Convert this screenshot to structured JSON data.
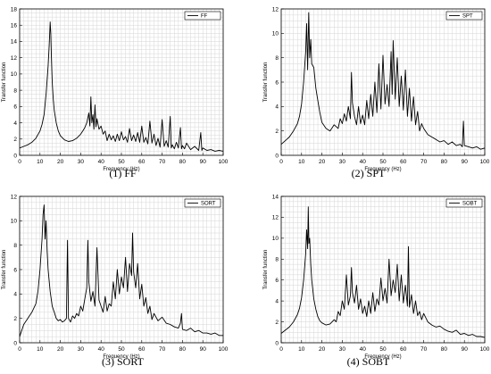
{
  "chart_data": [
    {
      "type": "line",
      "caption": "(1) FF",
      "xlabel": "Frequency (Hz)",
      "ylabel": "Transfer function",
      "xlim": [
        0,
        100
      ],
      "ylim": [
        0,
        18
      ],
      "xticks": [
        0,
        10,
        20,
        30,
        40,
        50,
        60,
        70,
        80,
        90,
        100
      ],
      "yticks": [
        0,
        2,
        4,
        6,
        8,
        10,
        12,
        14,
        16,
        18
      ],
      "grid": true,
      "legend": "top-right",
      "series": [
        {
          "name": "FF",
          "x": [
            0,
            2,
            4,
            6,
            8,
            10,
            11,
            12,
            13,
            14,
            14.5,
            15,
            15.3,
            15.6,
            16,
            16.5,
            17,
            18,
            19,
            20,
            22,
            24,
            26,
            28,
            30,
            31,
            32,
            33,
            34,
            34.5,
            35,
            35.5,
            36,
            36.5,
            37,
            37.5,
            38,
            39,
            40,
            41,
            42,
            43,
            44,
            45,
            46,
            47,
            48,
            49,
            50,
            51,
            52,
            53,
            54,
            55,
            56,
            57,
            58,
            59,
            60,
            61,
            62,
            63,
            64,
            65,
            66,
            67,
            68,
            69,
            70,
            71,
            72,
            73,
            74,
            74.5,
            75,
            76,
            77,
            78,
            79,
            79.5,
            80,
            81,
            82,
            84,
            86,
            88,
            89,
            89.5,
            90,
            92,
            94,
            96,
            98,
            100
          ],
          "y": [
            0.9,
            1.1,
            1.3,
            1.6,
            2.1,
            3.0,
            3.8,
            5.0,
            7.5,
            11.0,
            13.5,
            16.4,
            15.0,
            12.0,
            9.0,
            7.0,
            5.5,
            4.0,
            3.0,
            2.4,
            1.9,
            1.7,
            1.8,
            2.1,
            2.6,
            3.0,
            3.4,
            4.0,
            5.2,
            3.6,
            7.2,
            4.0,
            5.0,
            3.2,
            6.2,
            3.5,
            4.5,
            3.2,
            3.6,
            2.6,
            3.0,
            1.8,
            2.6,
            1.9,
            2.4,
            1.7,
            2.6,
            1.8,
            2.9,
            1.9,
            2.3,
            1.6,
            3.3,
            1.8,
            2.5,
            1.7,
            2.8,
            1.6,
            3.6,
            1.6,
            2.2,
            1.4,
            4.2,
            1.5,
            2.6,
            1.2,
            2.1,
            1.0,
            4.4,
            1.1,
            1.8,
            1.0,
            4.8,
            0.9,
            1.3,
            0.8,
            1.6,
            0.9,
            3.4,
            0.8,
            1.2,
            0.8,
            1.5,
            0.7,
            1.1,
            0.6,
            2.8,
            0.6,
            0.9,
            0.6,
            0.7,
            0.5,
            0.6,
            0.5
          ]
        }
      ]
    },
    {
      "type": "line",
      "caption": "(2) SPT",
      "xlabel": "Frequency (Hz)",
      "ylabel": "Transfer function",
      "xlim": [
        0,
        100
      ],
      "ylim": [
        0,
        12
      ],
      "xticks": [
        0,
        10,
        20,
        30,
        40,
        50,
        60,
        70,
        80,
        90,
        100
      ],
      "yticks": [
        0,
        2,
        4,
        6,
        8,
        10,
        12
      ],
      "grid": true,
      "legend": "top-right",
      "series": [
        {
          "name": "SPT",
          "x": [
            0,
            2,
            4,
            6,
            8,
            9,
            10,
            11,
            12,
            12.5,
            13,
            13.5,
            14,
            14.5,
            15,
            16,
            17,
            18,
            19,
            20,
            22,
            24,
            26,
            28,
            29,
            30,
            31,
            32,
            33,
            34,
            34.5,
            35,
            36,
            37,
            38,
            39,
            40,
            41,
            42,
            43,
            44,
            45,
            46,
            47,
            48,
            49,
            50,
            51,
            52,
            53,
            54,
            54.5,
            55,
            56,
            57,
            58,
            59,
            60,
            61,
            62,
            63,
            64,
            65,
            66,
            67,
            68,
            69,
            70,
            72,
            74,
            76,
            78,
            80,
            82,
            84,
            86,
            88,
            89,
            89.5,
            90,
            92,
            94,
            96,
            98,
            100
          ],
          "y": [
            0.9,
            1.2,
            1.5,
            2.0,
            2.6,
            3.2,
            4.2,
            6.0,
            8.5,
            10.8,
            7.0,
            11.7,
            8.0,
            9.5,
            7.5,
            7.2,
            5.5,
            4.5,
            3.5,
            2.7,
            2.2,
            2.0,
            2.5,
            2.2,
            3.0,
            2.6,
            3.4,
            2.8,
            4.0,
            3.0,
            6.8,
            4.3,
            3.2,
            2.5,
            4.0,
            2.6,
            3.3,
            2.5,
            4.5,
            3.0,
            5.0,
            3.2,
            6.0,
            3.5,
            7.5,
            3.8,
            8.2,
            4.2,
            5.8,
            4.0,
            8.5,
            5.0,
            9.4,
            4.6,
            8.0,
            4.0,
            6.5,
            3.7,
            7.0,
            3.2,
            5.5,
            2.8,
            4.8,
            2.5,
            3.6,
            2.0,
            2.6,
            2.2,
            1.7,
            1.5,
            1.3,
            1.1,
            1.2,
            0.9,
            1.1,
            0.8,
            0.9,
            0.7,
            2.8,
            0.8,
            0.7,
            0.6,
            0.7,
            0.5,
            0.6
          ]
        }
      ]
    },
    {
      "type": "line",
      "caption": "(3) SORT",
      "xlabel": "Frequency (Hz)",
      "ylabel": "Transfer function",
      "xlim": [
        0,
        100
      ],
      "ylim": [
        0,
        12
      ],
      "xticks": [
        0,
        10,
        20,
        30,
        40,
        50,
        60,
        70,
        80,
        90,
        100
      ],
      "yticks": [
        0,
        2,
        4,
        6,
        8,
        10,
        12
      ],
      "grid": true,
      "legend": "top-right",
      "series": [
        {
          "name": "SORT",
          "x": [
            0,
            1,
            2,
            4,
            6,
            8,
            9,
            10,
            11,
            11.5,
            12,
            12.5,
            13,
            13.5,
            14,
            15,
            16,
            17,
            18,
            19,
            20,
            21,
            22,
            23,
            23.5,
            24,
            25,
            26,
            27,
            28,
            29,
            30,
            31,
            32,
            33,
            33.5,
            34,
            35,
            36,
            37,
            38,
            39,
            40,
            41,
            42,
            43,
            44,
            45,
            46,
            47,
            48,
            49,
            50,
            51,
            52,
            53,
            54,
            55,
            55.5,
            56,
            57,
            58,
            59,
            60,
            61,
            62,
            63,
            64,
            65,
            66,
            68,
            70,
            72,
            74,
            76,
            78,
            79,
            79.5,
            80,
            82,
            84,
            86,
            88,
            90,
            92,
            94,
            96,
            98,
            100
          ],
          "y": [
            0.5,
            1.0,
            1.5,
            2.0,
            2.5,
            3.2,
            4.2,
            6.0,
            8.5,
            10.5,
            11.3,
            8.5,
            10.0,
            7.5,
            6.0,
            4.2,
            3.0,
            2.5,
            2.0,
            1.8,
            1.9,
            1.7,
            1.8,
            2.0,
            8.4,
            2.0,
            1.7,
            2.2,
            2.0,
            2.4,
            2.2,
            3.0,
            2.6,
            3.6,
            4.5,
            8.4,
            5.0,
            3.4,
            4.2,
            3.0,
            7.8,
            3.5,
            3.0,
            2.5,
            3.8,
            2.6,
            3.2,
            3.0,
            5.0,
            3.6,
            6.0,
            4.0,
            5.4,
            4.5,
            7.0,
            4.2,
            6.5,
            5.5,
            9.0,
            5.8,
            4.5,
            6.5,
            3.6,
            4.8,
            3.0,
            3.7,
            2.4,
            3.0,
            1.9,
            2.4,
            1.8,
            2.1,
            1.6,
            1.5,
            1.3,
            1.2,
            1.6,
            2.4,
            1.1,
            1.0,
            1.2,
            0.9,
            1.0,
            0.8,
            0.8,
            0.7,
            0.8,
            0.6,
            0.6
          ]
        }
      ]
    },
    {
      "type": "line",
      "caption": "(4) SOBT",
      "xlabel": "Frequency (Hz)",
      "ylabel": "Transfer function",
      "xlim": [
        0,
        100
      ],
      "ylim": [
        0,
        14
      ],
      "xticks": [
        0,
        10,
        20,
        30,
        40,
        50,
        60,
        70,
        80,
        90,
        100
      ],
      "yticks": [
        0,
        2,
        4,
        6,
        8,
        10,
        12,
        14
      ],
      "grid": true,
      "legend": "top-right",
      "series": [
        {
          "name": "SOBT",
          "x": [
            0,
            2,
            4,
            6,
            8,
            9,
            10,
            11,
            12,
            12.5,
            13,
            13.3,
            13.6,
            14,
            14.5,
            15,
            16,
            17,
            18,
            19,
            20,
            22,
            24,
            26,
            27,
            28,
            29,
            30,
            31,
            32,
            33,
            34,
            34.5,
            35,
            36,
            37,
            38,
            39,
            40,
            41,
            42,
            43,
            44,
            45,
            46,
            47,
            48,
            49,
            50,
            51,
            52,
            53,
            54,
            55,
            56,
            57,
            58,
            59,
            60,
            61,
            62,
            62.5,
            63,
            64,
            65,
            66,
            67,
            68,
            69,
            70,
            72,
            74,
            76,
            78,
            80,
            82,
            84,
            86,
            88,
            90,
            92,
            94,
            96,
            98,
            100
          ],
          "y": [
            0.9,
            1.2,
            1.5,
            2.0,
            2.7,
            3.3,
            4.3,
            6.0,
            8.5,
            10.8,
            9.0,
            13.0,
            9.5,
            10.0,
            7.5,
            6.0,
            4.2,
            3.2,
            2.5,
            2.1,
            1.9,
            1.7,
            1.8,
            2.2,
            2.0,
            3.0,
            2.6,
            4.0,
            3.2,
            6.5,
            3.6,
            4.5,
            7.2,
            4.8,
            3.8,
            5.5,
            3.2,
            4.2,
            2.8,
            3.5,
            2.5,
            4.0,
            2.8,
            4.8,
            3.0,
            4.2,
            3.6,
            6.2,
            4.0,
            5.2,
            3.8,
            8.0,
            4.5,
            6.0,
            4.8,
            7.5,
            4.0,
            6.5,
            3.8,
            5.5,
            3.5,
            9.2,
            3.4,
            4.6,
            2.8,
            4.0,
            2.6,
            3.0,
            2.2,
            2.8,
            2.0,
            1.7,
            1.5,
            1.6,
            1.3,
            1.1,
            1.0,
            1.2,
            0.8,
            0.9,
            0.7,
            0.8,
            0.6,
            0.6,
            0.5
          ]
        }
      ]
    }
  ]
}
